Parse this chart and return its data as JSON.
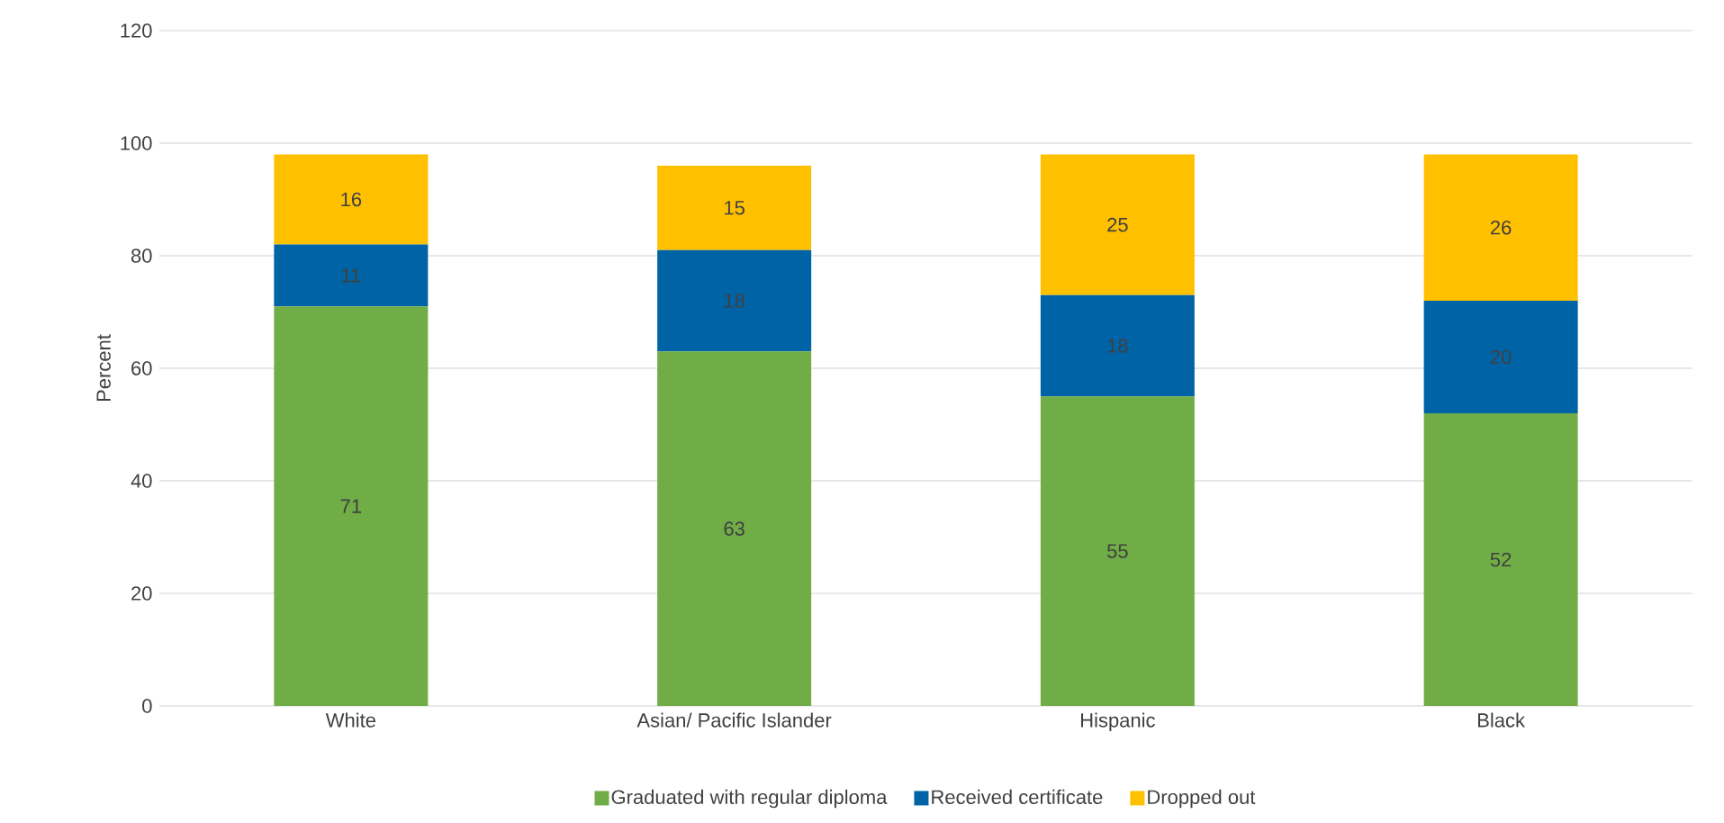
{
  "chart_data": {
    "type": "bar",
    "stacked": true,
    "ylabel": "Percent",
    "categories": [
      "White",
      "Asian/ Pacific Islander",
      "Hispanic",
      "Black"
    ],
    "series": [
      {
        "name": "Graduated with regular diploma",
        "color": "#70ad47",
        "values": [
          71,
          63,
          55,
          52
        ]
      },
      {
        "name": "Received certificate",
        "color": "#0063a6",
        "values": [
          11,
          18,
          18,
          20
        ]
      },
      {
        "name": "Dropped out",
        "color": "#ffc000",
        "values": [
          16,
          15,
          25,
          26
        ]
      }
    ],
    "ylim": [
      0,
      120
    ],
    "yticks": [
      0,
      20,
      40,
      60,
      80,
      100,
      120
    ],
    "grid": "y",
    "legend": "bottom",
    "data_labels": true
  }
}
